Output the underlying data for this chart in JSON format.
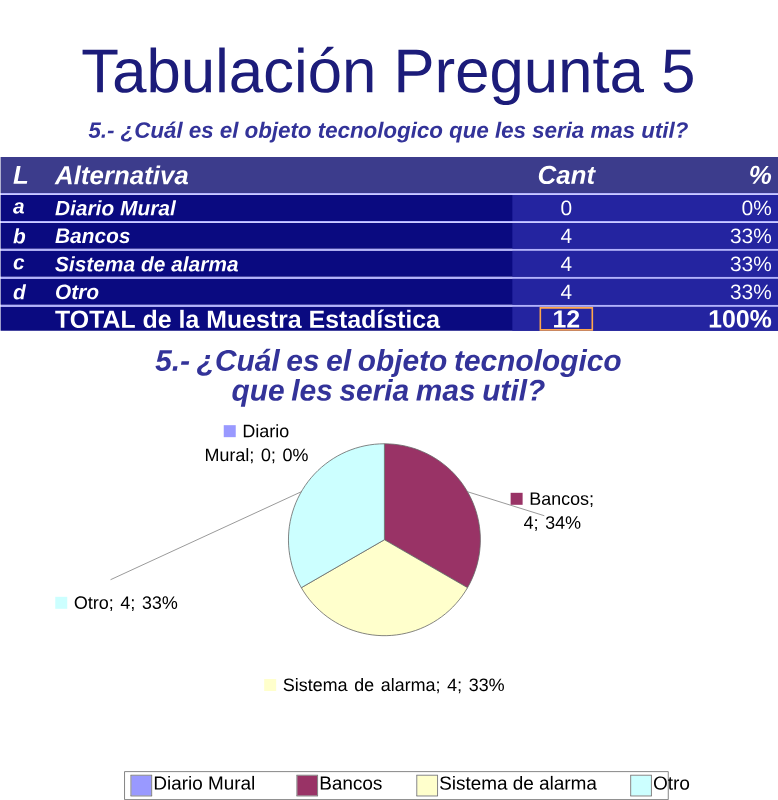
{
  "chart_data": [
    {
      "type": "other",
      "title": "Tabulación Pregunta 5",
      "subtitle": "5.- ¿Cuál es el objeto tecnologico que les seria mas util?",
      "annotations": [
        "L",
        "Alternativa",
        "Cant",
        "%",
        "a",
        "Diario Mural",
        "0",
        "0%",
        "b",
        "Bancos",
        "4",
        "33%",
        "c",
        "Sistema de alarma",
        "4",
        "33%",
        "d",
        "Otro",
        "4",
        "33%",
        "TOTAL de la Muestra Estadística",
        "12",
        "100%"
      ]
    },
    {
      "type": "pie",
      "title": "5.- ¿Cuál es el objeto tecnologico que les seria mas util?",
      "categories": [
        "Diario Mural",
        "Bancos",
        "Sistema de alarma",
        "Otro"
      ],
      "values": [
        0,
        4,
        4,
        4
      ],
      "colors": [
        "#9999ff",
        "#993366",
        "#ffffcc",
        "#ccffff"
      ],
      "value_labels": [
        "Diario Mural; 0; 0%",
        "Bancos; 4; 34%",
        "Sistema de alarma; 4; 33%",
        "Otro; 4; 33%"
      ],
      "legend": "bottom"
    }
  ]
}
